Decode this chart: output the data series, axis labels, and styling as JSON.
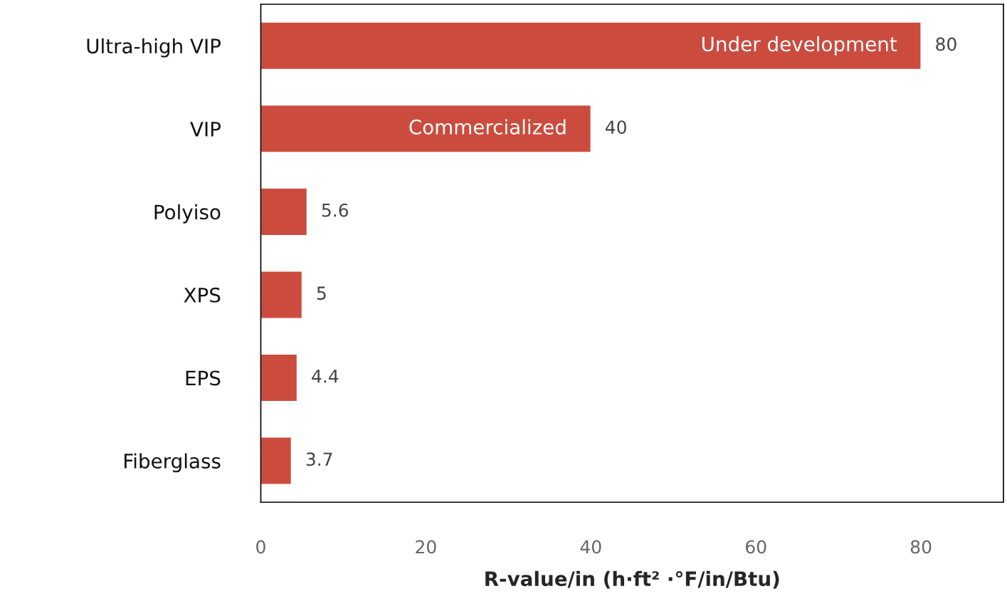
{
  "chart_data": {
    "type": "bar",
    "orientation": "horizontal",
    "categories": [
      "Ultra-high VIP",
      "VIP",
      "Polyiso",
      "XPS",
      "EPS",
      "Fiberglass"
    ],
    "values": [
      80,
      40,
      5.6,
      5,
      4.4,
      3.7
    ],
    "color": "#cb4c3f",
    "xlim": [
      0,
      90
    ],
    "xticks": [
      0,
      20,
      40,
      60,
      80
    ],
    "xlabel": "R-value/in (h·ft² ·°F/in/Btu)",
    "data_labels": true,
    "grid": false,
    "annotations": [
      {
        "text": "Under development",
        "x": 80,
        "y": "Ultra-high VIP"
      },
      {
        "text": "Commercialized",
        "x": 40,
        "y": "VIP"
      }
    ]
  }
}
